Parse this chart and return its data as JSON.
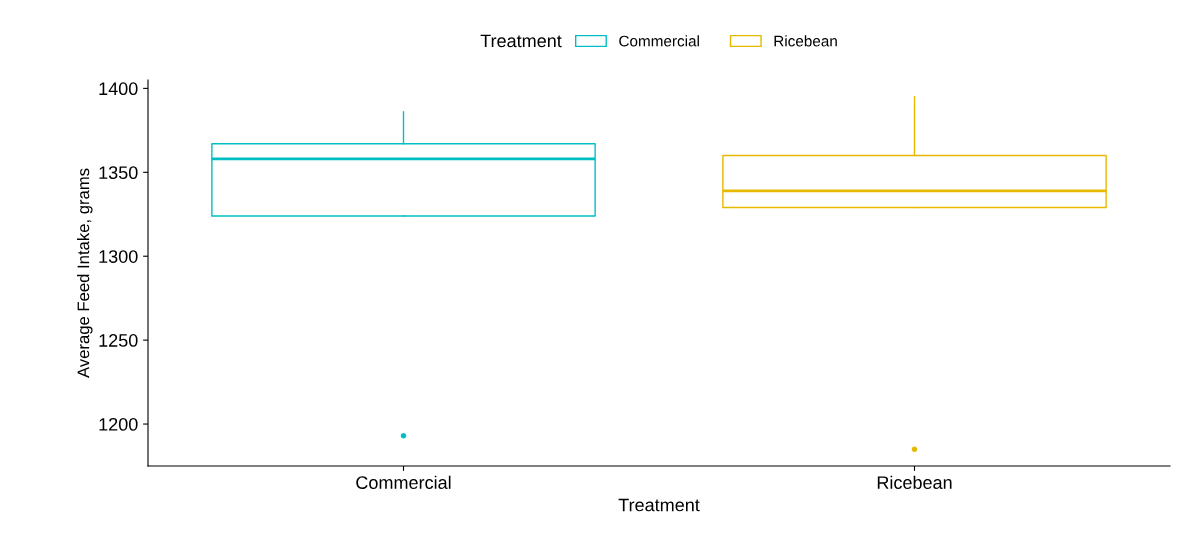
{
  "chart_data": {
    "type": "box",
    "xlabel": "Treatment",
    "ylabel": "Average Feed Intake, grams",
    "legend_title": "Treatment",
    "categories": [
      "Commercial",
      "Ricebean"
    ],
    "series": [
      {
        "name": "Commercial",
        "color": "#00bfc4",
        "boxes": [
          {
            "low": 1324,
            "q1": 1324,
            "median": 1358,
            "q3": 1367,
            "high": 1386,
            "outliers": [
              1193
            ]
          },
          null
        ]
      },
      {
        "name": "Ricebean",
        "color": "#e7b800",
        "boxes": [
          null,
          {
            "low": 1329,
            "q1": 1329,
            "median": 1339,
            "q3": 1360,
            "high": 1395,
            "outliers": [
              1185
            ]
          }
        ]
      }
    ],
    "ylim": [
      1175,
      1405
    ],
    "yticks": [
      1200,
      1250,
      1300,
      1350,
      1400
    ],
    "grid": false,
    "legend": "top"
  }
}
